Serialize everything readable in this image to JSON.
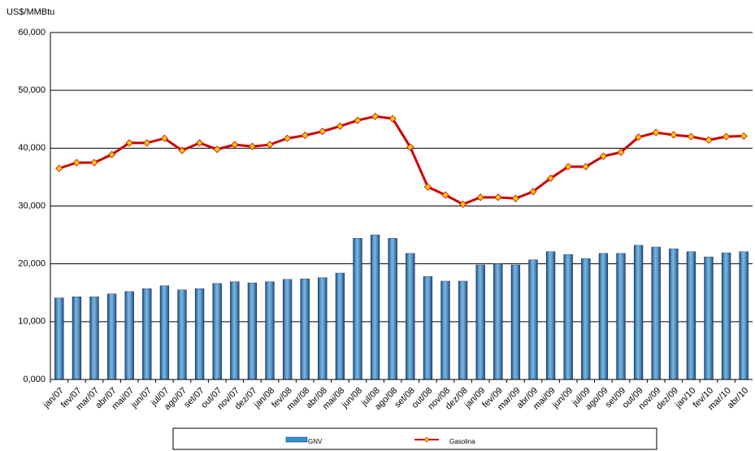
{
  "chart_data": {
    "type": "bar_line",
    "y_label": "US$/MMBtu",
    "categories": [
      "jan/07",
      "fev/07",
      "mar/07",
      "abr/07",
      "mai/07",
      "jun/07",
      "jul/07",
      "ago/07",
      "set/07",
      "out/07",
      "nov/07",
      "dez/07",
      "jan/08",
      "fev/08",
      "mar/08",
      "abr/08",
      "mai/08",
      "jun/08",
      "jul/08",
      "ago/08",
      "set/08",
      "out/08",
      "nov/08",
      "dez/08",
      "jan/09",
      "fev/09",
      "mar/09",
      "abr/09",
      "mai/09",
      "jun/09",
      "jul/09",
      "ago/09",
      "set/09",
      "out/09",
      "nov/09",
      "dez/09",
      "jan/10",
      "fev/10",
      "mar/10",
      "abr/10"
    ],
    "series": [
      {
        "name": "GNV",
        "type": "bar",
        "color": "#2f8fd0",
        "values": [
          14.1,
          14.3,
          14.3,
          14.8,
          15.2,
          15.7,
          16.2,
          15.5,
          15.7,
          16.6,
          16.9,
          16.7,
          16.9,
          17.3,
          17.4,
          17.6,
          18.4,
          24.4,
          25.0,
          24.4,
          21.8,
          17.8,
          17.0,
          17.0,
          19.8,
          20.0,
          19.8,
          20.7,
          22.1,
          21.6,
          20.9,
          21.8,
          21.8,
          23.2,
          22.9,
          22.6,
          22.1,
          21.2,
          21.9,
          22.1
        ]
      },
      {
        "name": "Gasolina",
        "type": "line",
        "color": "#cc0000",
        "marker_color": "#ffcc00",
        "values": [
          36.5,
          37.5,
          37.5,
          38.9,
          40.9,
          40.9,
          41.7,
          39.6,
          40.9,
          39.8,
          40.6,
          40.3,
          40.6,
          41.7,
          42.2,
          42.9,
          43.8,
          44.8,
          45.5,
          45.1,
          40.2,
          33.3,
          31.9,
          30.3,
          31.5,
          31.5,
          31.3,
          32.5,
          34.8,
          36.8,
          36.8,
          38.6,
          39.3,
          41.9,
          42.7,
          42.3,
          42.0,
          41.4,
          42.0,
          42.1
        ]
      }
    ],
    "ylim": [
      0,
      60
    ],
    "yticks": [
      {
        "value": 0,
        "label": "0,000"
      },
      {
        "value": 10,
        "label": "10,000"
      },
      {
        "value": 20,
        "label": "20,000"
      },
      {
        "value": 30,
        "label": "30,000"
      },
      {
        "value": 40,
        "label": "40,000"
      },
      {
        "value": 50,
        "label": "50,000"
      },
      {
        "value": 60,
        "label": "60,000"
      }
    ],
    "grid": true,
    "legend": "bottom"
  }
}
